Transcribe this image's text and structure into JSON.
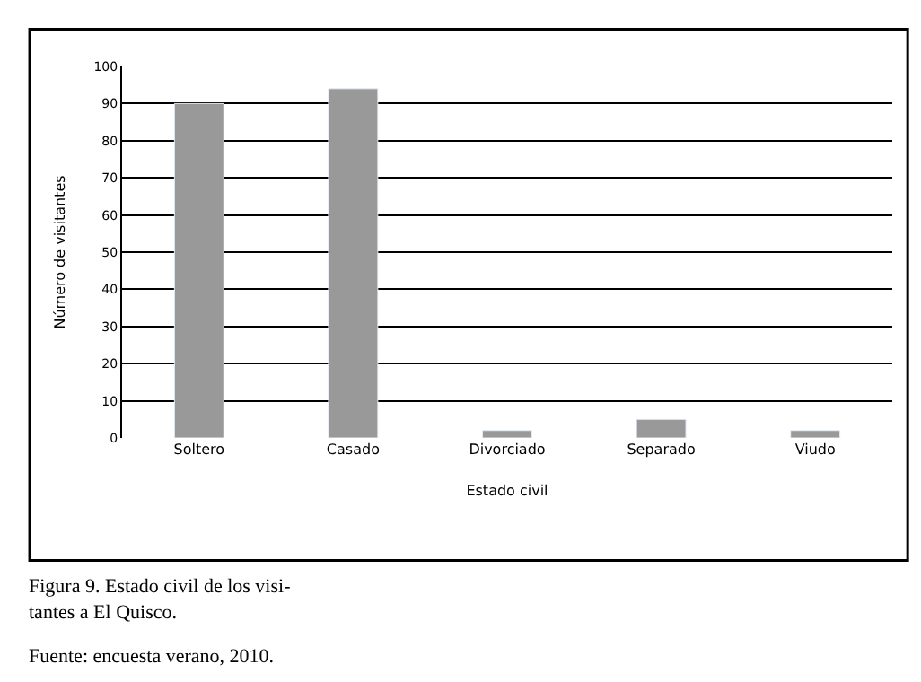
{
  "chart_data": {
    "type": "bar",
    "categories": [
      "Soltero",
      "Casado",
      "Divorciado",
      "Separado",
      "Viudo"
    ],
    "values": [
      90,
      94,
      2,
      5,
      2
    ],
    "color": "#999999",
    "xlabel": "Estado civil",
    "ylabel": "Número de visitantes",
    "ylim": [
      0,
      100
    ],
    "yticks": [
      0,
      10,
      20,
      30,
      40,
      50,
      60,
      70,
      80,
      90,
      100
    ],
    "grid": "y",
    "annotations": [
      "Figura 9. Estado civil de los visi-\ntantes a El Quisco.",
      "Fuente: encuesta verano, 2010."
    ]
  }
}
